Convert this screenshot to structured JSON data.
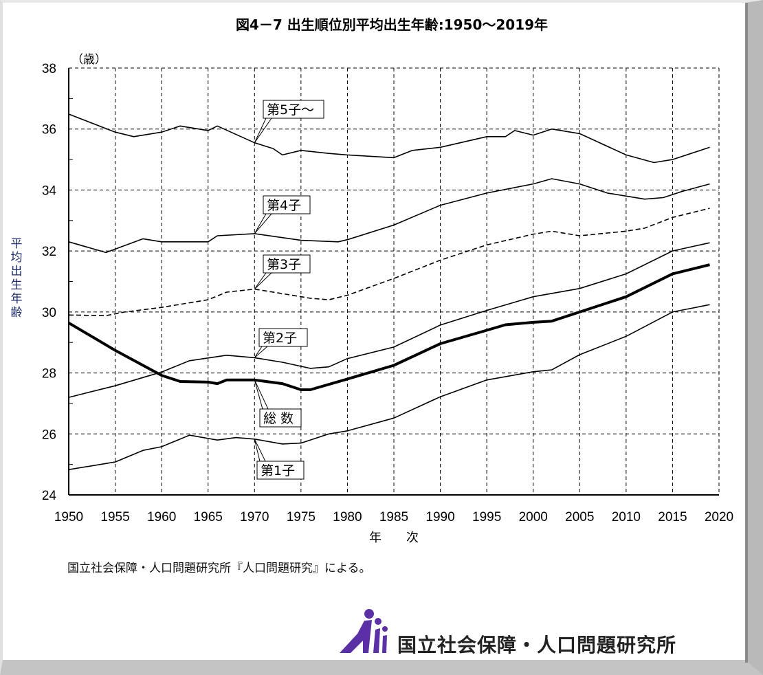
{
  "chart_data": {
    "type": "line",
    "title": "図4－7 出生順位別平均出生年齢:1950～2019年",
    "xlabel": "年　　次",
    "ylabel": "平均出生年齢",
    "yunit": "（歳）",
    "xlim": [
      1950,
      2020
    ],
    "ylim": [
      24,
      38
    ],
    "xticks": [
      1950,
      1955,
      1960,
      1965,
      1970,
      1975,
      1980,
      1985,
      1990,
      1995,
      2000,
      2005,
      2010,
      2015,
      2020
    ],
    "yticks": [
      24,
      26,
      28,
      30,
      32,
      34,
      36,
      38
    ],
    "grid": true,
    "series": [
      {
        "name": "第5子～",
        "style": "solid",
        "points": [
          [
            1950,
            36.49
          ],
          [
            1955,
            35.9
          ],
          [
            1957,
            35.75
          ],
          [
            1960,
            35.9
          ],
          [
            1962,
            36.1
          ],
          [
            1965,
            35.95
          ],
          [
            1966,
            36.1
          ],
          [
            1970,
            35.55
          ],
          [
            1972,
            35.36
          ],
          [
            1973,
            35.15
          ],
          [
            1975,
            35.3
          ],
          [
            1978,
            35.2
          ],
          [
            1980,
            35.15
          ],
          [
            1985,
            35.06
          ],
          [
            1987,
            35.3
          ],
          [
            1990,
            35.4
          ],
          [
            1995,
            35.75
          ],
          [
            1997,
            35.75
          ],
          [
            1998,
            35.95
          ],
          [
            2000,
            35.8
          ],
          [
            2002,
            36.0
          ],
          [
            2005,
            35.85
          ],
          [
            2010,
            35.15
          ],
          [
            2013,
            34.9
          ],
          [
            2015,
            35.0
          ],
          [
            2019,
            35.4
          ]
        ]
      },
      {
        "name": "第4子",
        "style": "solid",
        "points": [
          [
            1950,
            32.3
          ],
          [
            1954,
            31.95
          ],
          [
            1958,
            32.4
          ],
          [
            1960,
            32.3
          ],
          [
            1965,
            32.3
          ],
          [
            1966,
            32.5
          ],
          [
            1970,
            32.57
          ],
          [
            1975,
            32.35
          ],
          [
            1979,
            32.3
          ],
          [
            1980,
            32.37
          ],
          [
            1985,
            32.85
          ],
          [
            1990,
            33.5
          ],
          [
            1995,
            33.9
          ],
          [
            2000,
            34.2
          ],
          [
            2002,
            34.37
          ],
          [
            2005,
            34.2
          ],
          [
            2008,
            33.9
          ],
          [
            2012,
            33.7
          ],
          [
            2014,
            33.75
          ],
          [
            2016,
            33.95
          ],
          [
            2019,
            34.2
          ]
        ]
      },
      {
        "name": "第3子",
        "style": "dashed",
        "points": [
          [
            1950,
            29.9
          ],
          [
            1954,
            29.88
          ],
          [
            1956,
            30.0
          ],
          [
            1960,
            30.15
          ],
          [
            1965,
            30.4
          ],
          [
            1967,
            30.65
          ],
          [
            1970,
            30.75
          ],
          [
            1973,
            30.6
          ],
          [
            1976,
            30.45
          ],
          [
            1978,
            30.4
          ],
          [
            1980,
            30.55
          ],
          [
            1985,
            31.1
          ],
          [
            1990,
            31.7
          ],
          [
            1995,
            32.2
          ],
          [
            2000,
            32.55
          ],
          [
            2002,
            32.65
          ],
          [
            2005,
            32.5
          ],
          [
            2010,
            32.65
          ],
          [
            2012,
            32.75
          ],
          [
            2015,
            33.1
          ],
          [
            2019,
            33.4
          ]
        ]
      },
      {
        "name": "第2子",
        "style": "solid",
        "points": [
          [
            1950,
            27.2
          ],
          [
            1955,
            27.58
          ],
          [
            1960,
            28.03
          ],
          [
            1963,
            28.4
          ],
          [
            1967,
            28.58
          ],
          [
            1970,
            28.5
          ],
          [
            1973,
            28.35
          ],
          [
            1976,
            28.15
          ],
          [
            1978,
            28.2
          ],
          [
            1980,
            28.47
          ],
          [
            1985,
            28.85
          ],
          [
            1990,
            29.57
          ],
          [
            1995,
            30.05
          ],
          [
            2000,
            30.5
          ],
          [
            2005,
            30.77
          ],
          [
            2010,
            31.25
          ],
          [
            2015,
            32.0
          ],
          [
            2019,
            32.27
          ]
        ]
      },
      {
        "name": "総 数",
        "style": "bold",
        "points": [
          [
            1950,
            29.64
          ],
          [
            1955,
            28.74
          ],
          [
            1960,
            27.92
          ],
          [
            1962,
            27.72
          ],
          [
            1965,
            27.7
          ],
          [
            1966,
            27.65
          ],
          [
            1967,
            27.77
          ],
          [
            1970,
            27.77
          ],
          [
            1973,
            27.65
          ],
          [
            1975,
            27.45
          ],
          [
            1976,
            27.45
          ],
          [
            1980,
            27.8
          ],
          [
            1985,
            28.25
          ],
          [
            1990,
            28.96
          ],
          [
            1995,
            29.4
          ],
          [
            1997,
            29.58
          ],
          [
            2000,
            29.66
          ],
          [
            2002,
            29.7
          ],
          [
            2005,
            30.0
          ],
          [
            2010,
            30.5
          ],
          [
            2015,
            31.25
          ],
          [
            2019,
            31.55
          ]
        ]
      },
      {
        "name": "第1子",
        "style": "solid",
        "points": [
          [
            1950,
            24.83
          ],
          [
            1955,
            25.08
          ],
          [
            1958,
            25.46
          ],
          [
            1960,
            25.58
          ],
          [
            1963,
            25.96
          ],
          [
            1966,
            25.8
          ],
          [
            1968,
            25.88
          ],
          [
            1970,
            25.83
          ],
          [
            1973,
            25.67
          ],
          [
            1975,
            25.7
          ],
          [
            1978,
            26.0
          ],
          [
            1980,
            26.1
          ],
          [
            1985,
            26.52
          ],
          [
            1990,
            27.22
          ],
          [
            1995,
            27.77
          ],
          [
            2000,
            28.04
          ],
          [
            2002,
            28.1
          ],
          [
            2005,
            28.6
          ],
          [
            2010,
            29.2
          ],
          [
            2015,
            30.0
          ],
          [
            2019,
            30.24
          ]
        ]
      }
    ],
    "source_note": "国立社会保障・人口問題研究所『人口問題研究』による。"
  },
  "logo": {
    "text": "国立社会保障・人口問題研究所",
    "color": "#5b2fa6"
  }
}
